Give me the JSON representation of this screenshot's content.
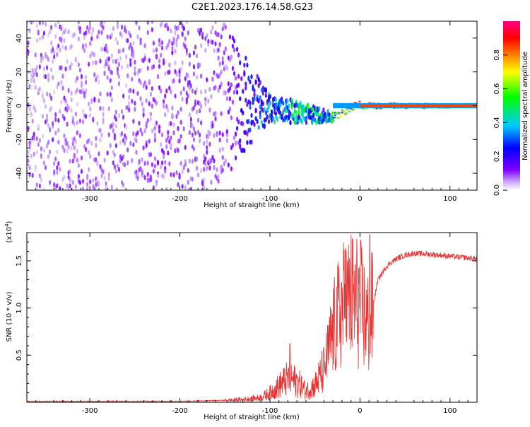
{
  "figure": {
    "title": "C2E1.2023.176.14.58.G23"
  },
  "chart_data": [
    {
      "type": "heatmap",
      "xlabel": "Height of straight line (km)",
      "ylabel": "Frequency (Hz)",
      "xlim": [
        -370,
        130
      ],
      "ylim": [
        -50,
        50
      ],
      "x_ticks": [
        -300,
        -200,
        -100,
        0,
        100
      ],
      "y_ticks": [
        -40,
        -20,
        0,
        20,
        40
      ],
      "colorbar": {
        "label": "Normalized spectral amplitude",
        "range": [
          0.0,
          1.0
        ],
        "ticks": [
          "0.0",
          "0.2",
          "0.4",
          "0.6",
          "0.8"
        ],
        "colors": [
          "#ffffff",
          "#7f00ff",
          "#0000ff",
          "#00c8ff",
          "#00ff00",
          "#ffff00",
          "#ff7f00",
          "#ff0000",
          "#ff0080"
        ]
      },
      "description_points": [
        {
          "x": -370,
          "f_spread": 50,
          "amp": 0.05
        },
        {
          "x": -210,
          "f_spread": 50,
          "amp": 0.1
        },
        {
          "x": -150,
          "f_spread": 45,
          "amp": 0.1
        },
        {
          "x": -100,
          "f_spread": 8,
          "amp": 0.35
        },
        {
          "x": -60,
          "f_spread": 6,
          "amp": 0.45
        },
        {
          "x": -35,
          "f_spread": 3,
          "amp": 0.4
        },
        {
          "x": 0,
          "f_spread": 2,
          "amp": 0.85
        },
        {
          "x": 130,
          "f_spread": 1,
          "amp": 0.9
        }
      ]
    },
    {
      "type": "line",
      "xlabel": "Height of straight line (km)",
      "ylabel": "SNR (10 * v/v)",
      "y_multiplier": "(x10",
      "y_multiplier_exp": "4",
      "y_multiplier_close": ")",
      "xlim": [
        -370,
        130
      ],
      "ylim": [
        0,
        1.8
      ],
      "x_ticks": [
        -300,
        -200,
        -100,
        0,
        100
      ],
      "y_ticks": [
        "0.5",
        "1.0",
        "1.5"
      ],
      "y_tick_values": [
        0.5,
        1.0,
        1.5
      ],
      "color": "#e83030",
      "x": [
        -370,
        -300,
        -200,
        -150,
        -130,
        -110,
        -100,
        -80,
        -70,
        -60,
        -50,
        -40,
        -30,
        -20,
        -10,
        0,
        10,
        20,
        30,
        40,
        50,
        60,
        80,
        100,
        130
      ],
      "y": [
        0.01,
        0.01,
        0.01,
        0.02,
        0.03,
        0.05,
        0.1,
        0.25,
        0.22,
        0.12,
        0.18,
        0.35,
        0.75,
        1.0,
        1.1,
        1.05,
        0.8,
        1.3,
        1.45,
        1.52,
        1.56,
        1.58,
        1.57,
        1.55,
        1.52
      ],
      "spikes": [
        {
          "x": -78,
          "y": 0.62
        },
        {
          "x": -16,
          "y": 1.63
        },
        {
          "x": 11,
          "y": 1.78
        }
      ]
    }
  ]
}
